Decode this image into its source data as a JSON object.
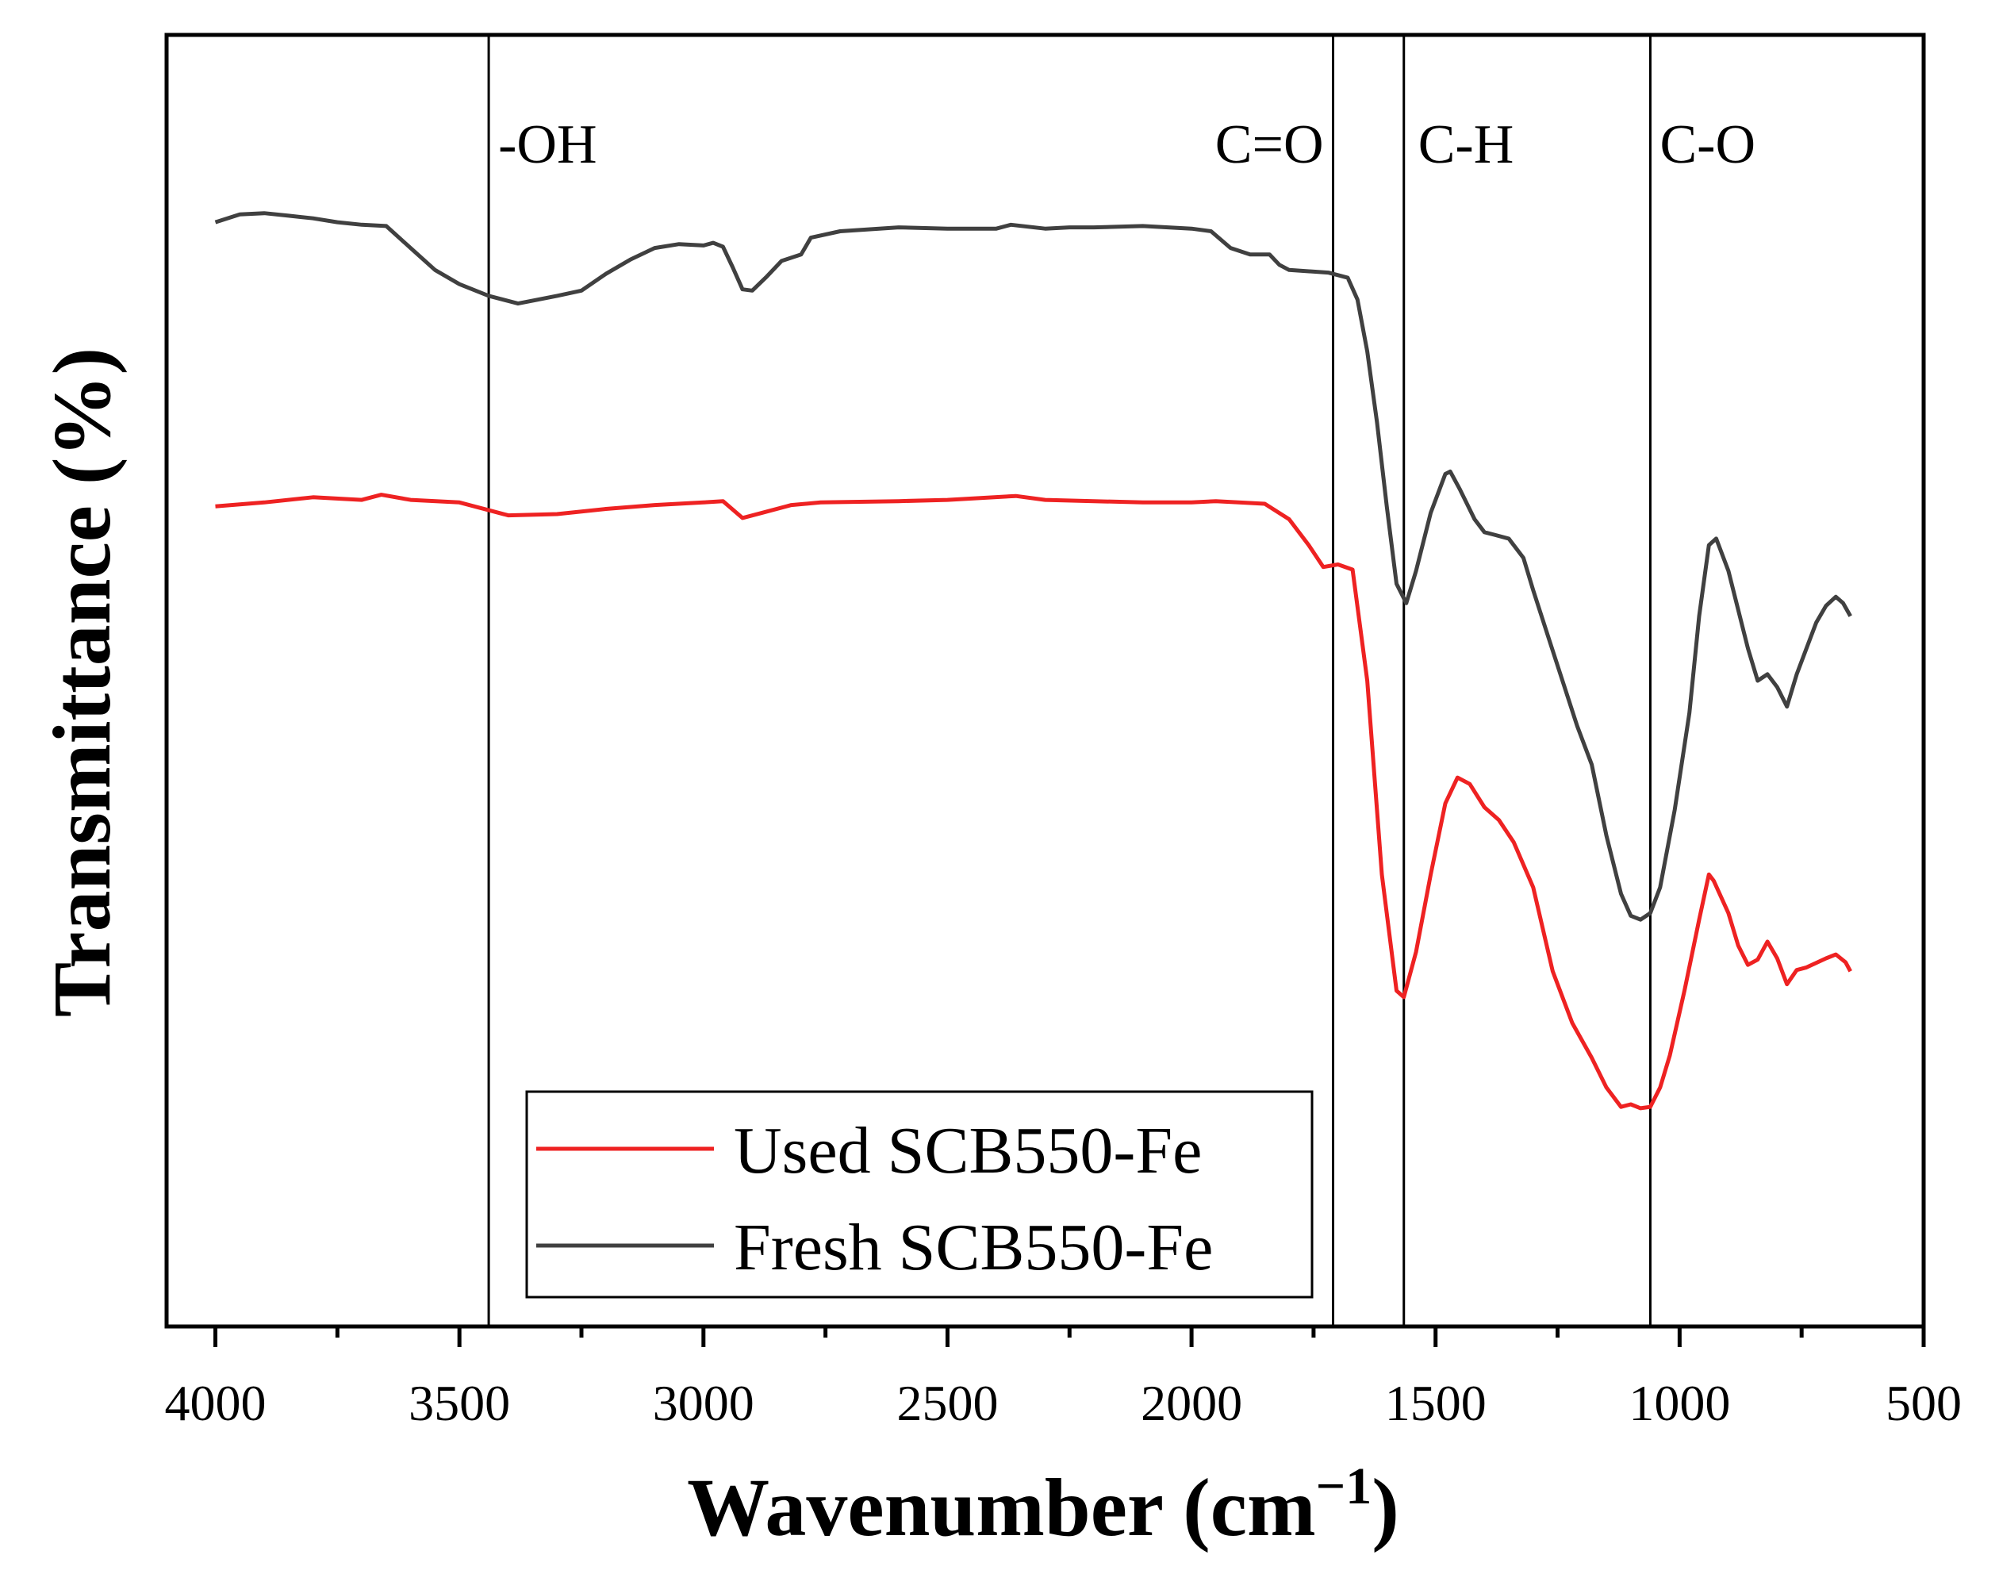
{
  "chart_data": {
    "type": "line",
    "title": "",
    "xlabel": "Wavenumber (cm",
    "xlabel_superscript": "−1",
    "xlabel_close": ")",
    "ylabel": "Transmittance (%)",
    "xlim": [
      4100,
      500
    ],
    "ylim": [
      0,
      100
    ],
    "x_ticks": [
      4000,
      3500,
      3000,
      2500,
      2000,
      1500,
      1000,
      500
    ],
    "x_tick_labels": [
      "4000",
      "3500",
      "3000",
      "2500",
      "2000",
      "1500",
      "1000",
      "500"
    ],
    "y_ticks_shown": false,
    "grid": false,
    "legend_position": "bottom-center",
    "annotations": [
      {
        "label": "-OH",
        "x": 3440
      },
      {
        "label": "C=O",
        "x": 1710
      },
      {
        "label": "C-H",
        "x": 1565
      },
      {
        "label": "C-O",
        "x": 1060
      }
    ],
    "series": [
      {
        "name": "Used SCB550-Fe",
        "color": "#ee2222",
        "points": [
          [
            4000,
            63.5
          ],
          [
            3900,
            63.8
          ],
          [
            3800,
            64.2
          ],
          [
            3700,
            64.0
          ],
          [
            3660,
            64.4
          ],
          [
            3600,
            64.0
          ],
          [
            3500,
            63.8
          ],
          [
            3440,
            63.2
          ],
          [
            3400,
            62.8
          ],
          [
            3300,
            62.9
          ],
          [
            3200,
            63.3
          ],
          [
            3100,
            63.6
          ],
          [
            3000,
            63.8
          ],
          [
            2960,
            63.9
          ],
          [
            2920,
            62.6
          ],
          [
            2880,
            63.0
          ],
          [
            2820,
            63.6
          ],
          [
            2760,
            63.8
          ],
          [
            2600,
            63.9
          ],
          [
            2500,
            64.0
          ],
          [
            2360,
            64.3
          ],
          [
            2300,
            64.0
          ],
          [
            2200,
            63.9
          ],
          [
            2100,
            63.8
          ],
          [
            2000,
            63.8
          ],
          [
            1950,
            63.9
          ],
          [
            1850,
            63.7
          ],
          [
            1800,
            62.5
          ],
          [
            1760,
            60.5
          ],
          [
            1730,
            58.8
          ],
          [
            1700,
            59.0
          ],
          [
            1670,
            58.6
          ],
          [
            1640,
            50.0
          ],
          [
            1610,
            35.0
          ],
          [
            1580,
            26.0
          ],
          [
            1565,
            25.5
          ],
          [
            1540,
            29.0
          ],
          [
            1510,
            35.0
          ],
          [
            1480,
            40.5
          ],
          [
            1455,
            42.5
          ],
          [
            1430,
            42.0
          ],
          [
            1400,
            40.2
          ],
          [
            1370,
            39.2
          ],
          [
            1340,
            37.5
          ],
          [
            1300,
            34.0
          ],
          [
            1260,
            27.5
          ],
          [
            1220,
            23.5
          ],
          [
            1180,
            20.8
          ],
          [
            1150,
            18.5
          ],
          [
            1120,
            17.0
          ],
          [
            1100,
            17.2
          ],
          [
            1080,
            16.9
          ],
          [
            1060,
            17.0
          ],
          [
            1040,
            18.5
          ],
          [
            1020,
            21.0
          ],
          [
            990,
            26.0
          ],
          [
            960,
            31.5
          ],
          [
            940,
            35.0
          ],
          [
            930,
            34.5
          ],
          [
            900,
            32.0
          ],
          [
            880,
            29.5
          ],
          [
            860,
            28.0
          ],
          [
            840,
            28.4
          ],
          [
            820,
            29.8
          ],
          [
            800,
            28.5
          ],
          [
            780,
            26.5
          ],
          [
            760,
            27.6
          ],
          [
            740,
            27.8
          ],
          [
            700,
            28.5
          ],
          [
            680,
            28.8
          ],
          [
            660,
            28.2
          ],
          [
            650,
            27.5
          ]
        ]
      },
      {
        "name": "Fresh SCB550-Fe",
        "color": "#404040",
        "points": [
          [
            4000,
            85.5
          ],
          [
            3950,
            86.1
          ],
          [
            3900,
            86.2
          ],
          [
            3850,
            86.0
          ],
          [
            3800,
            85.8
          ],
          [
            3750,
            85.5
          ],
          [
            3700,
            85.3
          ],
          [
            3650,
            85.2
          ],
          [
            3600,
            83.5
          ],
          [
            3550,
            81.8
          ],
          [
            3500,
            80.7
          ],
          [
            3440,
            79.8
          ],
          [
            3380,
            79.2
          ],
          [
            3300,
            79.8
          ],
          [
            3250,
            80.2
          ],
          [
            3200,
            81.5
          ],
          [
            3150,
            82.6
          ],
          [
            3100,
            83.5
          ],
          [
            3050,
            83.8
          ],
          [
            3000,
            83.7
          ],
          [
            2980,
            83.9
          ],
          [
            2960,
            83.6
          ],
          [
            2940,
            82.0
          ],
          [
            2920,
            80.3
          ],
          [
            2900,
            80.2
          ],
          [
            2870,
            81.3
          ],
          [
            2840,
            82.5
          ],
          [
            2800,
            83.0
          ],
          [
            2780,
            84.3
          ],
          [
            2720,
            84.8
          ],
          [
            2600,
            85.1
          ],
          [
            2500,
            85.0
          ],
          [
            2400,
            85.0
          ],
          [
            2370,
            85.3
          ],
          [
            2300,
            85.0
          ],
          [
            2250,
            85.1
          ],
          [
            2200,
            85.1
          ],
          [
            2100,
            85.2
          ],
          [
            2000,
            85.0
          ],
          [
            1960,
            84.8
          ],
          [
            1920,
            83.5
          ],
          [
            1880,
            83.0
          ],
          [
            1840,
            83.0
          ],
          [
            1820,
            82.2
          ],
          [
            1800,
            81.8
          ],
          [
            1720,
            81.6
          ],
          [
            1680,
            81.2
          ],
          [
            1660,
            79.5
          ],
          [
            1640,
            75.5
          ],
          [
            1620,
            70.0
          ],
          [
            1600,
            63.5
          ],
          [
            1580,
            57.5
          ],
          [
            1560,
            56.0
          ],
          [
            1540,
            58.5
          ],
          [
            1510,
            63.0
          ],
          [
            1480,
            66.0
          ],
          [
            1470,
            66.2
          ],
          [
            1450,
            64.8
          ],
          [
            1420,
            62.5
          ],
          [
            1400,
            61.5
          ],
          [
            1380,
            61.3
          ],
          [
            1350,
            61.0
          ],
          [
            1320,
            59.5
          ],
          [
            1300,
            57.0
          ],
          [
            1270,
            53.5
          ],
          [
            1240,
            50.0
          ],
          [
            1210,
            46.5
          ],
          [
            1180,
            43.5
          ],
          [
            1150,
            38.0
          ],
          [
            1120,
            33.5
          ],
          [
            1100,
            31.8
          ],
          [
            1080,
            31.5
          ],
          [
            1060,
            32.0
          ],
          [
            1040,
            34.0
          ],
          [
            1010,
            40.0
          ],
          [
            980,
            47.5
          ],
          [
            960,
            55.0
          ],
          [
            940,
            60.5
          ],
          [
            925,
            61.0
          ],
          [
            900,
            58.5
          ],
          [
            880,
            55.5
          ],
          [
            860,
            52.5
          ],
          [
            840,
            50.0
          ],
          [
            820,
            50.5
          ],
          [
            800,
            49.5
          ],
          [
            780,
            48.0
          ],
          [
            760,
            50.5
          ],
          [
            740,
            52.5
          ],
          [
            720,
            54.5
          ],
          [
            700,
            55.8
          ],
          [
            680,
            56.5
          ],
          [
            665,
            56.0
          ],
          [
            650,
            55.0
          ]
        ]
      }
    ]
  }
}
